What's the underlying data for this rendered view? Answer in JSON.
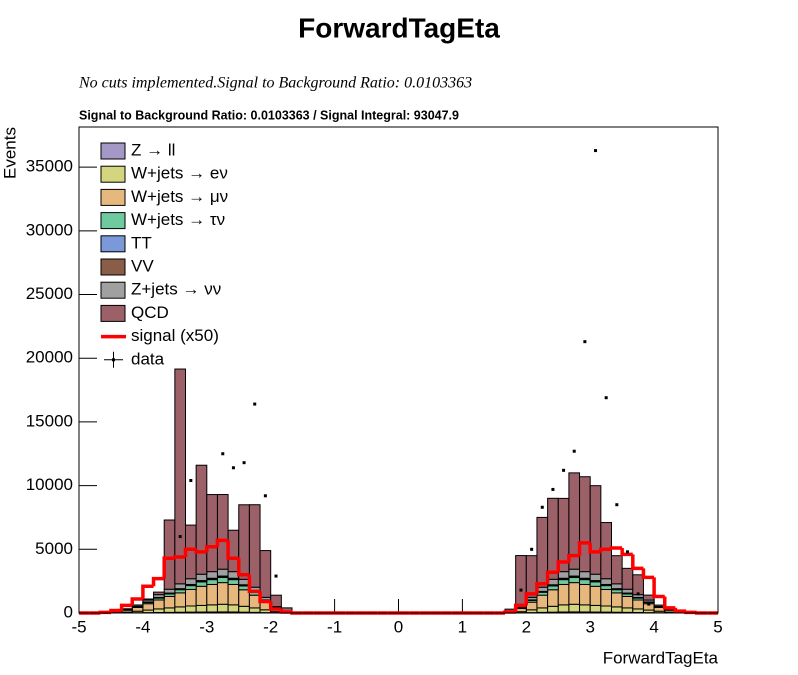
{
  "chart_data": {
    "type": "stacked-histogram",
    "title": "ForwardTagEta",
    "subtitle": "No cuts implemented.Signal to Background Ratio: 0.0103363",
    "annotation": "Signal to Background Ratio: 0.0103363 / Signal Integral: 93047.9",
    "xlabel": "ForwardTagEta",
    "ylabel": "Events",
    "xlim": [
      -5,
      5
    ],
    "ylim": [
      0,
      38150
    ],
    "xticks": [
      -5,
      -4,
      -3,
      -2,
      -1,
      0,
      1,
      2,
      3,
      4,
      5
    ],
    "yticks": [
      0,
      5000,
      10000,
      15000,
      20000,
      25000,
      30000,
      35000
    ],
    "bins": [
      -5,
      -4.8333,
      -4.6667,
      -4.5,
      -4.3333,
      -4.1667,
      -4,
      -3.8333,
      -3.6667,
      -3.5,
      -3.3333,
      -3.1667,
      -3,
      -2.8333,
      -2.6667,
      -2.5,
      -2.3333,
      -2.1667,
      -2,
      -1.8333,
      -1.6667,
      -1.5,
      -1.3333,
      -1.1667,
      -1,
      -0.8333,
      -0.6667,
      -0.5,
      -0.3333,
      -0.1667,
      0,
      0.1667,
      0.3333,
      0.5,
      0.6667,
      0.8333,
      1,
      1.1667,
      1.3333,
      1.5,
      1.6667,
      1.8333,
      2,
      2.1667,
      2.3333,
      2.5,
      2.6667,
      2.8333,
      3,
      3.1667,
      3.3333,
      3.5,
      3.6667,
      3.8333,
      4,
      4.1667,
      4.3333,
      4.5,
      4.6667,
      4.8333,
      5
    ],
    "series": [
      {
        "name": "Z → ll",
        "color": "#a499c6",
        "values": [
          0,
          0,
          0,
          5,
          10,
          20,
          30,
          40,
          50,
          60,
          70,
          75,
          80,
          85,
          80,
          65,
          50,
          30,
          12,
          3,
          0,
          0,
          0,
          0,
          0,
          0,
          0,
          0,
          0,
          0,
          0,
          0,
          0,
          0,
          0,
          0,
          0,
          0,
          0,
          0,
          3,
          12,
          30,
          50,
          65,
          80,
          85,
          80,
          75,
          70,
          60,
          50,
          40,
          30,
          20,
          10,
          5,
          0,
          0,
          0
        ]
      },
      {
        "name": "W+jets → eν",
        "color": "#d3d67e",
        "values": [
          0,
          0,
          10,
          30,
          60,
          120,
          200,
          280,
          350,
          420,
          480,
          520,
          560,
          600,
          560,
          460,
          350,
          220,
          90,
          20,
          0,
          0,
          0,
          0,
          0,
          0,
          0,
          0,
          0,
          0,
          0,
          0,
          0,
          0,
          0,
          0,
          0,
          0,
          0,
          0,
          20,
          90,
          220,
          350,
          460,
          560,
          600,
          560,
          520,
          480,
          420,
          350,
          280,
          200,
          120,
          60,
          30,
          10,
          0,
          0
        ]
      },
      {
        "name": "W+jets → μν",
        "color": "#e6b87e",
        "values": [
          0,
          0,
          30,
          80,
          150,
          300,
          500,
          700,
          900,
          1100,
          1300,
          1500,
          1600,
          1700,
          1600,
          1300,
          1000,
          600,
          250,
          60,
          0,
          0,
          0,
          0,
          0,
          0,
          0,
          0,
          0,
          0,
          0,
          0,
          0,
          0,
          0,
          0,
          0,
          0,
          0,
          0,
          60,
          250,
          600,
          1000,
          1300,
          1600,
          1700,
          1600,
          1500,
          1300,
          1100,
          900,
          700,
          500,
          300,
          150,
          80,
          30,
          0,
          0
        ]
      },
      {
        "name": "W+jets → τν",
        "color": "#6fcaa0",
        "values": [
          0,
          0,
          5,
          15,
          30,
          60,
          100,
          150,
          200,
          250,
          300,
          350,
          380,
          400,
          380,
          300,
          230,
          140,
          60,
          15,
          0,
          0,
          0,
          0,
          0,
          0,
          0,
          0,
          0,
          0,
          0,
          0,
          0,
          0,
          0,
          0,
          0,
          0,
          0,
          0,
          15,
          60,
          140,
          230,
          300,
          380,
          400,
          380,
          350,
          300,
          250,
          200,
          150,
          100,
          60,
          30,
          15,
          5,
          0,
          0
        ]
      },
      {
        "name": "TT",
        "color": "#7b99d9",
        "values": [
          0,
          0,
          0,
          2,
          5,
          10,
          15,
          20,
          25,
          30,
          35,
          40,
          42,
          45,
          42,
          35,
          25,
          15,
          6,
          2,
          0,
          0,
          0,
          0,
          0,
          0,
          0,
          0,
          0,
          0,
          0,
          0,
          0,
          0,
          0,
          0,
          0,
          0,
          0,
          0,
          2,
          6,
          15,
          25,
          35,
          42,
          45,
          42,
          40,
          35,
          30,
          25,
          20,
          15,
          10,
          5,
          2,
          0,
          0,
          0
        ]
      },
      {
        "name": "VV",
        "color": "#8a5d48",
        "values": [
          0,
          0,
          0,
          3,
          6,
          12,
          20,
          30,
          40,
          50,
          55,
          60,
          65,
          70,
          65,
          55,
          40,
          25,
          10,
          3,
          0,
          0,
          0,
          0,
          0,
          0,
          0,
          0,
          0,
          0,
          0,
          0,
          0,
          0,
          0,
          0,
          0,
          0,
          0,
          0,
          3,
          10,
          25,
          40,
          55,
          65,
          70,
          65,
          60,
          55,
          50,
          40,
          30,
          20,
          12,
          6,
          3,
          0,
          0,
          0
        ]
      },
      {
        "name": "Z+jets → νν",
        "color": "#a0a0a0",
        "values": [
          0,
          0,
          10,
          30,
          60,
          100,
          150,
          220,
          300,
          380,
          450,
          500,
          520,
          540,
          520,
          430,
          330,
          200,
          80,
          20,
          0,
          0,
          0,
          0,
          0,
          0,
          0,
          0,
          0,
          0,
          0,
          0,
          0,
          0,
          0,
          0,
          0,
          0,
          0,
          0,
          20,
          80,
          200,
          330,
          430,
          520,
          540,
          520,
          500,
          450,
          380,
          300,
          220,
          150,
          100,
          60,
          30,
          10,
          0,
          0
        ]
      },
      {
        "name": "QCD",
        "color": "#9c6069",
        "values": [
          0,
          0,
          5,
          5,
          10,
          10,
          85,
          200,
          5435,
          16860,
          4210,
          8555,
          6050,
          5860,
          3250,
          5850,
          6475,
          3670,
          890,
          280,
          0,
          0,
          0,
          0,
          0,
          0,
          0,
          0,
          0,
          0,
          0,
          0,
          0,
          0,
          0,
          0,
          0,
          0,
          0,
          0,
          180,
          4000,
          3270,
          5480,
          6360,
          5750,
          7560,
          7450,
          6950,
          4410,
          2210,
          1640,
          1560,
          390,
          0,
          0,
          0,
          0,
          0,
          0
        ]
      }
    ],
    "signal": {
      "name": "signal (x50)",
      "color": "#ff0000",
      "values": [
        0,
        0,
        50,
        200,
        600,
        1100,
        2100,
        2700,
        4300,
        4400,
        5000,
        4800,
        5200,
        5700,
        4300,
        3000,
        1700,
        900,
        300,
        80,
        0,
        0,
        0,
        0,
        0,
        0,
        0,
        0,
        0,
        0,
        0,
        0,
        0,
        0,
        0,
        0,
        0,
        0,
        0,
        0,
        80,
        600,
        1500,
        2300,
        3200,
        4000,
        4500,
        5500,
        4800,
        5000,
        5100,
        4600,
        3500,
        2800,
        1300,
        400,
        150,
        50,
        0,
        0
      ]
    },
    "data": {
      "name": "data",
      "color": "#000000",
      "values": [
        null,
        null,
        null,
        null,
        null,
        null,
        null,
        null,
        null,
        6000,
        10400,
        null,
        null,
        12500,
        11400,
        11800,
        16400,
        9200,
        2900,
        null,
        null,
        null,
        null,
        null,
        null,
        null,
        null,
        null,
        null,
        null,
        null,
        null,
        null,
        null,
        null,
        null,
        null,
        null,
        null,
        null,
        null,
        1800,
        5000,
        8300,
        9700,
        11200,
        12700,
        21300,
        36300,
        16900,
        8500,
        4800,
        1500,
        700,
        null,
        null,
        null,
        null,
        null,
        null
      ]
    }
  }
}
